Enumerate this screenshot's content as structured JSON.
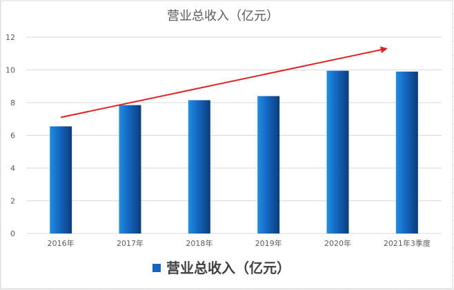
{
  "chart_data": {
    "type": "bar",
    "title": "营业总收入（亿元）",
    "categories": [
      "2016年",
      "2017年",
      "2018年",
      "2019年",
      "2020年",
      "2021年3季度"
    ],
    "series": [
      {
        "name": "营业总收入（亿元）",
        "values": [
          6.55,
          7.85,
          8.15,
          8.4,
          9.95,
          9.9
        ]
      }
    ],
    "ylim": [
      0,
      12
    ],
    "yticks": [
      0,
      2,
      4,
      6,
      8,
      10,
      12
    ],
    "xlabel": "",
    "ylabel": "",
    "grid": true,
    "legend_position": "bottom",
    "trend_arrow": {
      "from": {
        "category": "2016年",
        "value": 7.1
      },
      "to": {
        "category": "2021年3季度",
        "value": 11.3
      },
      "color": "#e02020"
    },
    "colors": {
      "bar_light": "#1f8fe0",
      "bar_dark": "#0b3d78",
      "legend_swatch": "#1565c0",
      "title": "#595959"
    }
  }
}
